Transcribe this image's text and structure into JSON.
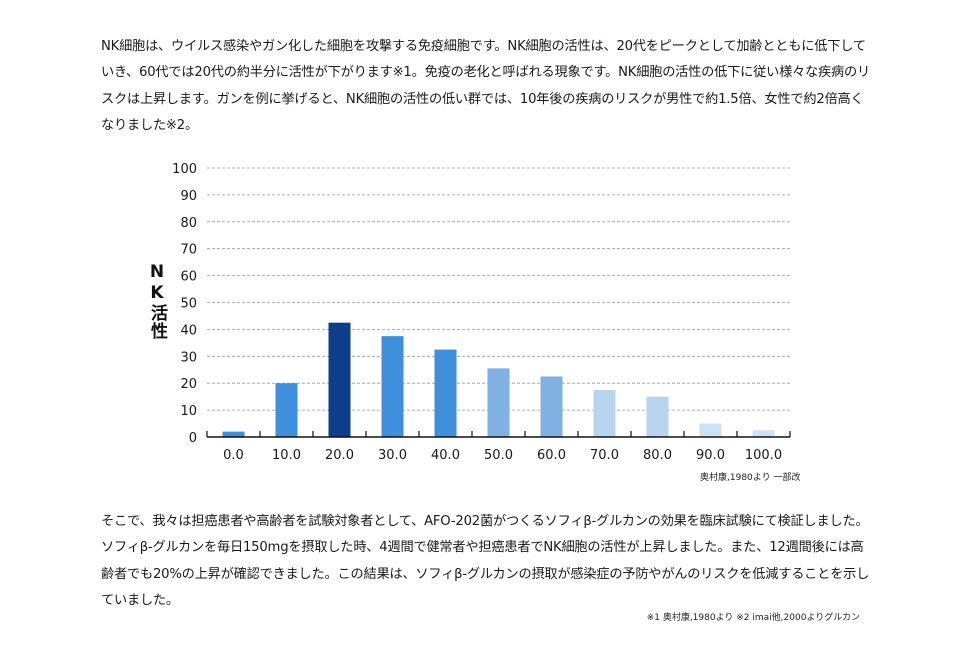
{
  "intro_text": "NK細胞は、ウイルス感染やガン化した細胞を攻撃する免疫細胞です。NK細胞の活性は、20代をピークとして加齢とともに低下していき、60代では20代の約半分に活性が下がります※1。免疫の老化と呼ばれる現象です。NK細胞の活性の低下に従い様々な疾病のリスクは上昇します。ガンを例に挙げると、NK細胞の活性の低い群では、10年後の疾病のリスクが男性で約1.5倍、女性で約2倍高くなりました※2。",
  "outro_text": "そこで、我々は担癌患者や高齢者を試験対象者として、AFO-202菌がつくるソフィβ-グルカンの効果を臨床試験にて検証しました。ソフィβ-グルカンを毎日150mgを摂取した時、4週間で健常者や担癌患者でNK細胞の活性が上昇しました。また、12週間後には高齢者でも20%の上昇が確認できました。この結果は、ソフィβ-グルカンの摂取が感染症の予防やがんのリスクを低減することを示していました。",
  "chart_source": "奥村康,1980より 一部改",
  "footnote": "※1 奥村康,1980より ※2 imai他,2000よりグルカン",
  "chart_data": {
    "type": "bar",
    "title": "",
    "xlabel": "",
    "ylabel": "NK活性",
    "categories": [
      "0.0",
      "10.0",
      "20.0",
      "30.0",
      "40.0",
      "50.0",
      "60.0",
      "70.0",
      "80.0",
      "90.0",
      "100.0"
    ],
    "values": [
      2,
      20,
      42.5,
      37.5,
      32.5,
      25.5,
      22.5,
      17.5,
      15,
      5,
      2.5
    ],
    "bar_colors": [
      "#3f8fdc",
      "#3f8fdc",
      "#0c3e8a",
      "#3f8fdc",
      "#3f8fdc",
      "#7fb1e3",
      "#7fb1e3",
      "#b9d4ef",
      "#b9d4ef",
      "#cfe1f4",
      "#cfe1f4"
    ],
    "ylim": [
      0,
      100
    ],
    "yticks": [
      "0",
      "10",
      "20",
      "30",
      "40",
      "50",
      "60",
      "70",
      "80",
      "90",
      "100"
    ],
    "grid": true
  }
}
